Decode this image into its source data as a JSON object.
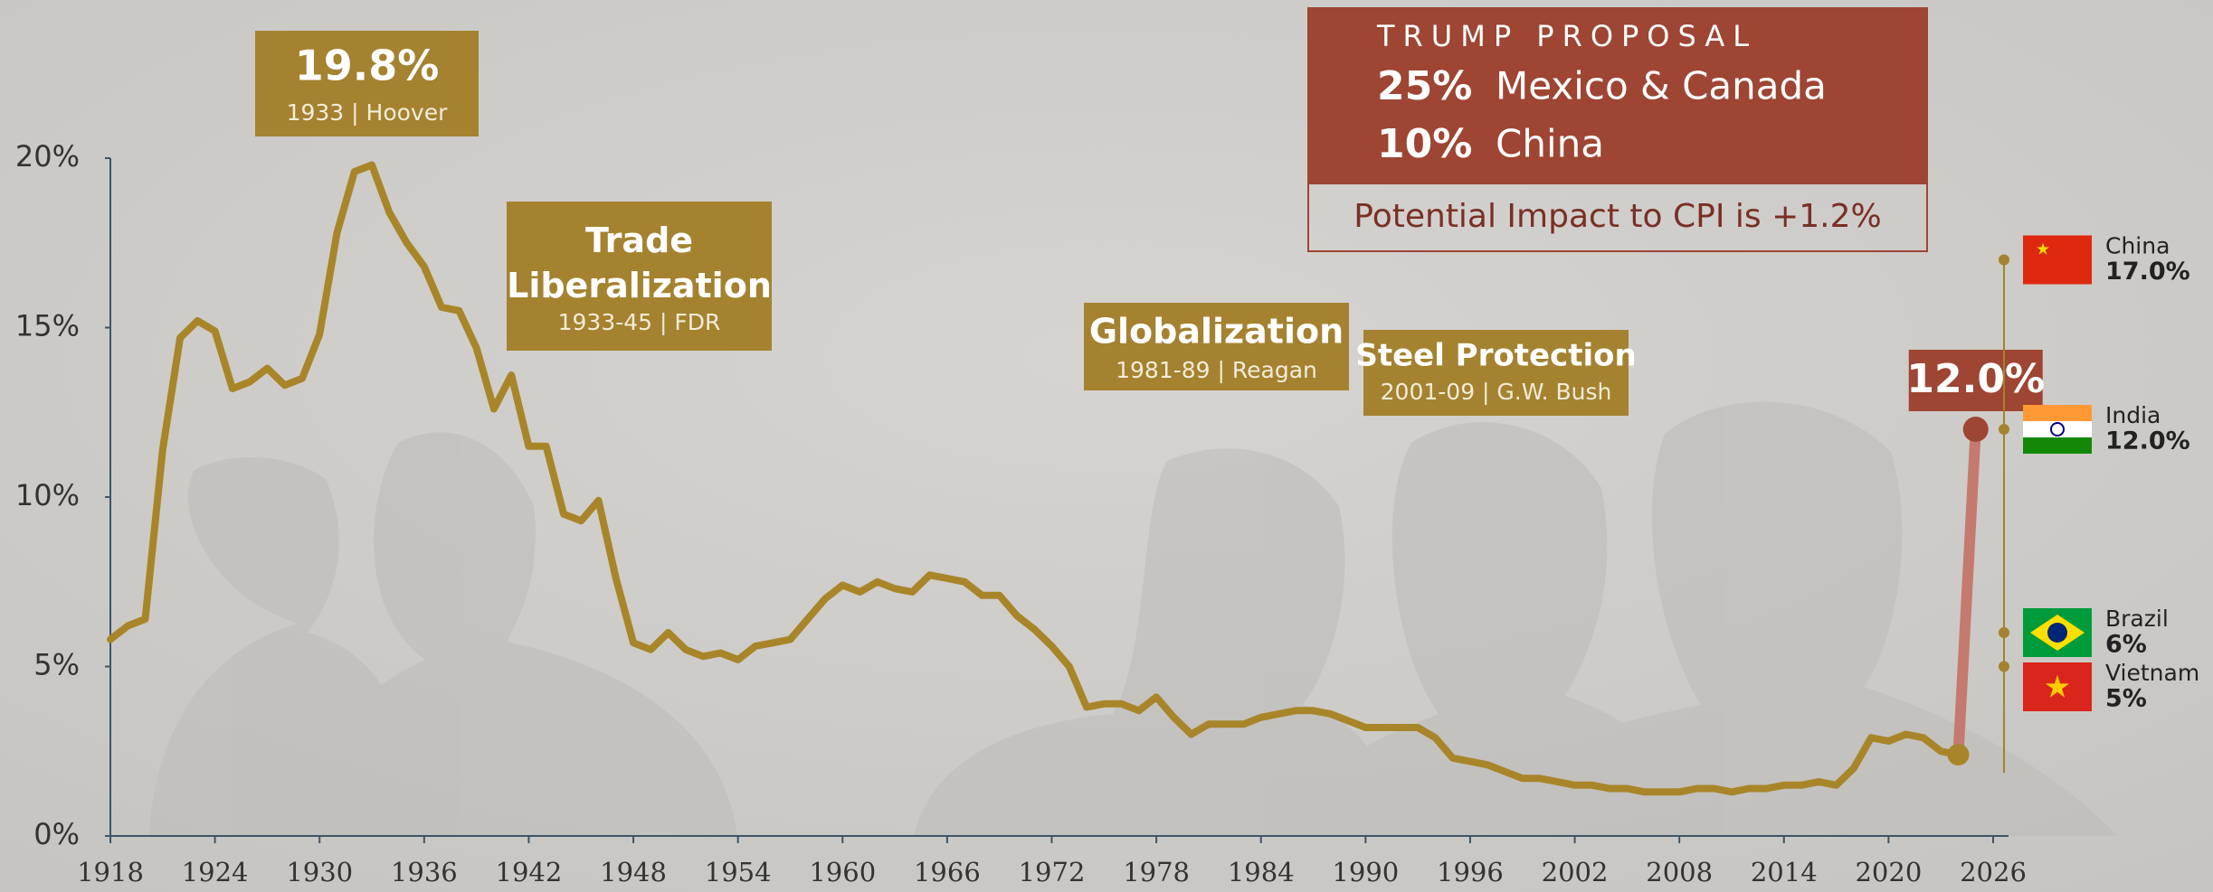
{
  "chart_data": {
    "type": "line",
    "color": "#a88528",
    "xlim": [
      1918,
      2026
    ],
    "ylim": [
      0,
      20
    ],
    "xticks": [
      1918,
      1924,
      1930,
      1936,
      1942,
      1948,
      1954,
      1960,
      1966,
      1972,
      1978,
      1984,
      1990,
      1996,
      2002,
      2008,
      2014,
      2020,
      2026
    ],
    "yticks": [
      {
        "value": 0,
        "label": "0%"
      },
      {
        "value": 5,
        "label": "5%"
      },
      {
        "value": 10,
        "label": "10%"
      },
      {
        "value": 15,
        "label": "15%"
      },
      {
        "value": 20,
        "label": "20%"
      }
    ],
    "x": [
      1918,
      1919,
      1920,
      1921,
      1922,
      1923,
      1924,
      1925,
      1926,
      1927,
      1928,
      1929,
      1930,
      1931,
      1932,
      1933,
      1934,
      1935,
      1936,
      1937,
      1938,
      1939,
      1940,
      1941,
      1942,
      1943,
      1944,
      1945,
      1946,
      1947,
      1948,
      1949,
      1950,
      1951,
      1952,
      1953,
      1954,
      1955,
      1956,
      1957,
      1958,
      1959,
      1960,
      1961,
      1962,
      1963,
      1964,
      1965,
      1966,
      1967,
      1968,
      1969,
      1970,
      1971,
      1972,
      1973,
      1974,
      1975,
      1976,
      1977,
      1978,
      1979,
      1980,
      1981,
      1982,
      1983,
      1984,
      1985,
      1986,
      1987,
      1988,
      1989,
      1990,
      1991,
      1992,
      1993,
      1994,
      1995,
      1996,
      1997,
      1998,
      1999,
      2000,
      2001,
      2002,
      2003,
      2004,
      2005,
      2006,
      2007,
      2008,
      2009,
      2010,
      2011,
      2012,
      2013,
      2014,
      2015,
      2016,
      2017,
      2018,
      2019,
      2020,
      2021,
      2022,
      2023,
      2024
    ],
    "values": [
      5.8,
      6.2,
      6.4,
      11.4,
      14.7,
      15.2,
      14.9,
      13.2,
      13.4,
      13.8,
      13.3,
      13.5,
      14.8,
      17.8,
      19.6,
      19.8,
      18.4,
      17.5,
      16.8,
      15.6,
      15.5,
      14.4,
      12.6,
      13.6,
      11.5,
      11.5,
      9.5,
      9.3,
      9.9,
      7.6,
      5.7,
      5.5,
      6.0,
      5.5,
      5.3,
      5.4,
      5.2,
      5.6,
      5.7,
      5.8,
      6.4,
      7.0,
      7.4,
      7.2,
      7.5,
      7.3,
      7.2,
      7.7,
      7.6,
      7.5,
      7.1,
      7.1,
      6.5,
      6.1,
      5.6,
      5.0,
      3.8,
      3.9,
      3.9,
      3.7,
      4.1,
      3.5,
      3.0,
      3.3,
      3.3,
      3.3,
      3.5,
      3.6,
      3.7,
      3.7,
      3.6,
      3.4,
      3.2,
      3.2,
      3.2,
      3.2,
      2.9,
      2.3,
      2.2,
      2.1,
      1.9,
      1.7,
      1.7,
      1.6,
      1.5,
      1.5,
      1.4,
      1.4,
      1.3,
      1.3,
      1.3,
      1.4,
      1.4,
      1.3,
      1.4,
      1.4,
      1.5,
      1.5,
      1.6,
      1.5,
      2.0,
      2.9,
      2.8,
      3.0,
      2.9,
      2.5,
      2.4
    ],
    "proposed": {
      "x": 2025,
      "value": 12.0,
      "label": "12.0%"
    },
    "annotations": [
      {
        "title": "19.8%",
        "subtitle": "1933 | Hoover"
      },
      {
        "title": "Trade Liberalization",
        "subtitle": "1933-45 | FDR"
      },
      {
        "title": "Globalization",
        "subtitle": "1981-89 | Reagan"
      },
      {
        "title": "Steel Protection",
        "subtitle": "2001-09 | G.W. Bush"
      }
    ],
    "proposal": {
      "header": "TRUMP PROPOSAL",
      "rates": [
        {
          "rate": "25%",
          "countries": "Mexico & Canada"
        },
        {
          "rate": "10%",
          "countries": "China"
        }
      ],
      "note": "Potential Impact to CPI is +1.2%"
    },
    "countries": [
      {
        "name": "China",
        "value": 17.0,
        "label": "17.0%"
      },
      {
        "name": "India",
        "value": 12.0,
        "label": "12.0%"
      },
      {
        "name": "Brazil",
        "value": 6,
        "label": "6%"
      },
      {
        "name": "Vietnam",
        "value": 5,
        "label": "5%"
      }
    ]
  }
}
